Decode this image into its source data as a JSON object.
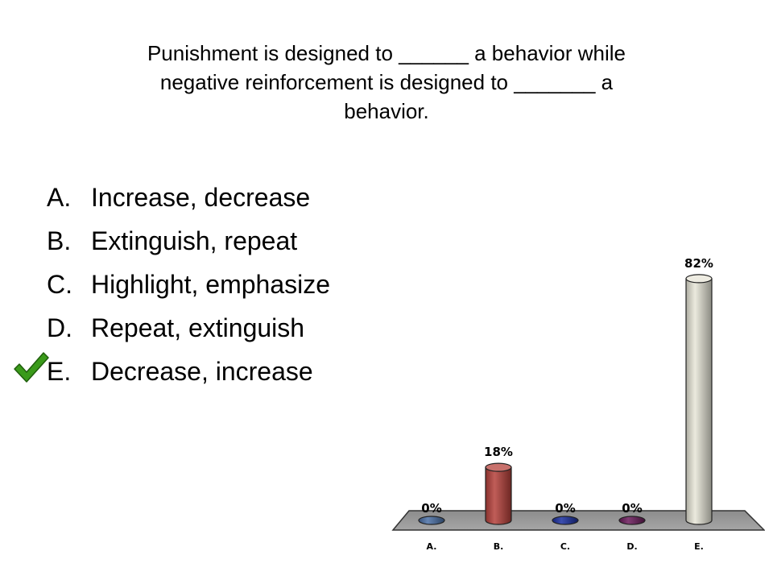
{
  "slide": {
    "question": "Punishment is designed to  ______ a behavior while\nnegative reinforcement is designed to _______ a\nbehavior.",
    "answers": [
      {
        "letter": "A.",
        "text": "Increase, decrease"
      },
      {
        "letter": "B.",
        "text": "Extinguish, repeat"
      },
      {
        "letter": "C.",
        "text": "Highlight, emphasize"
      },
      {
        "letter": "D.",
        "text": "Repeat, extinguish"
      },
      {
        "letter": "E.",
        "text": "Decrease, increase"
      }
    ],
    "correct_answer": "E.",
    "check_icon": "checkmark-icon",
    "check_color": "#3a9a1a"
  },
  "chart_data": {
    "type": "bar",
    "categories": [
      "A.",
      "B.",
      "C.",
      "D.",
      "E."
    ],
    "values": [
      0,
      18,
      0,
      0,
      82
    ],
    "data_labels": [
      "0%",
      "18%",
      "0%",
      "0%",
      "82%"
    ],
    "colors": [
      "#4a6fa5",
      "#b5413b",
      "#1a2fa0",
      "#6a1a5a",
      "#e8e6d8"
    ],
    "ylim": [
      0,
      100
    ],
    "title": "",
    "xlabel": "",
    "ylabel": "",
    "legend": false,
    "grid": false,
    "style": "3d-cylinder"
  }
}
